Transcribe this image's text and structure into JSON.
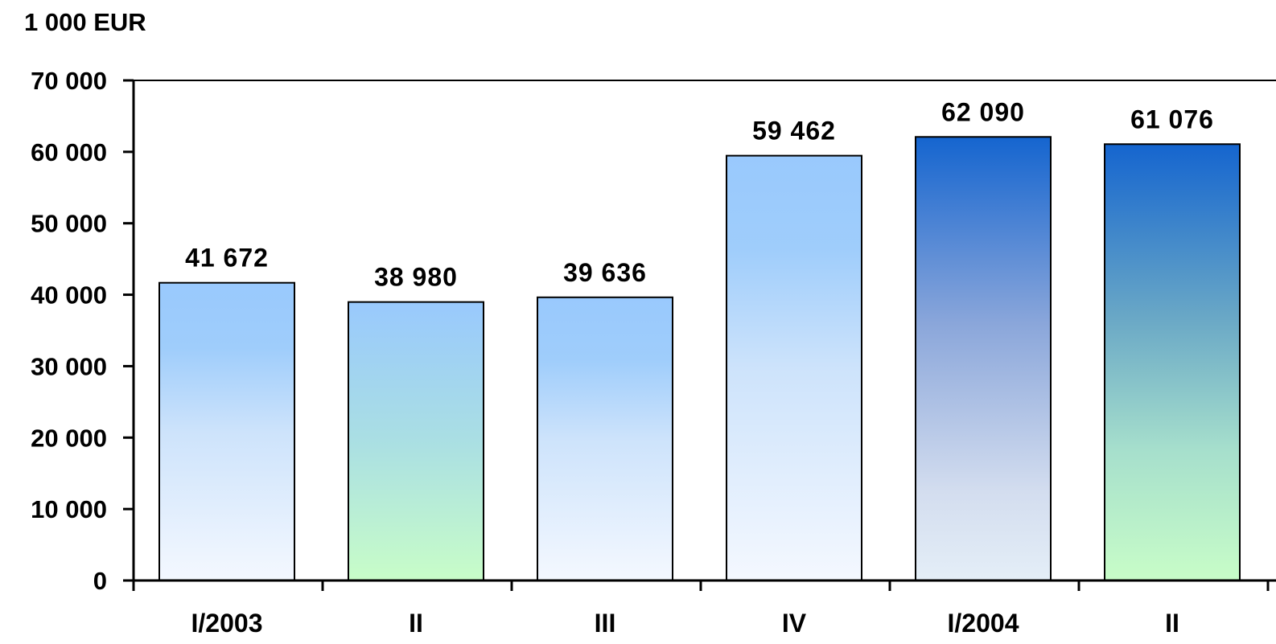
{
  "chart_data": {
    "type": "bar",
    "unit_label": "1 000 EUR",
    "title": "",
    "xlabel": "",
    "ylabel": "",
    "categories": [
      "I/2003",
      "II",
      "III",
      "IV",
      "I/2004",
      "II"
    ],
    "values": [
      41672,
      38980,
      39636,
      59462,
      62090,
      61076
    ],
    "value_labels": [
      "41 672",
      "38 980",
      "39 636",
      "59 462",
      "62 090",
      "61 076"
    ],
    "ylim": [
      0,
      70000
    ],
    "yticks": [
      0,
      10000,
      20000,
      30000,
      40000,
      50000,
      60000,
      70000
    ],
    "ytick_labels": [
      "0",
      "10 000",
      "20 000",
      "30 000",
      "40 000",
      "50 000",
      "60 000",
      "70 000"
    ],
    "grid": false,
    "legend": "none",
    "bar_styles": [
      "light-blue-fade",
      "blue-to-green",
      "light-blue-fade",
      "light-blue-fade",
      "dark-blue-fade",
      "dark-blue-to-green"
    ],
    "colors": {
      "axis": "#000000",
      "bar_outline": "#000000",
      "light_blue": "#99c9fd",
      "pale": "#f4f8ff",
      "pale_green": "#c8fdc8",
      "dark_blue": "#1565cf"
    }
  }
}
